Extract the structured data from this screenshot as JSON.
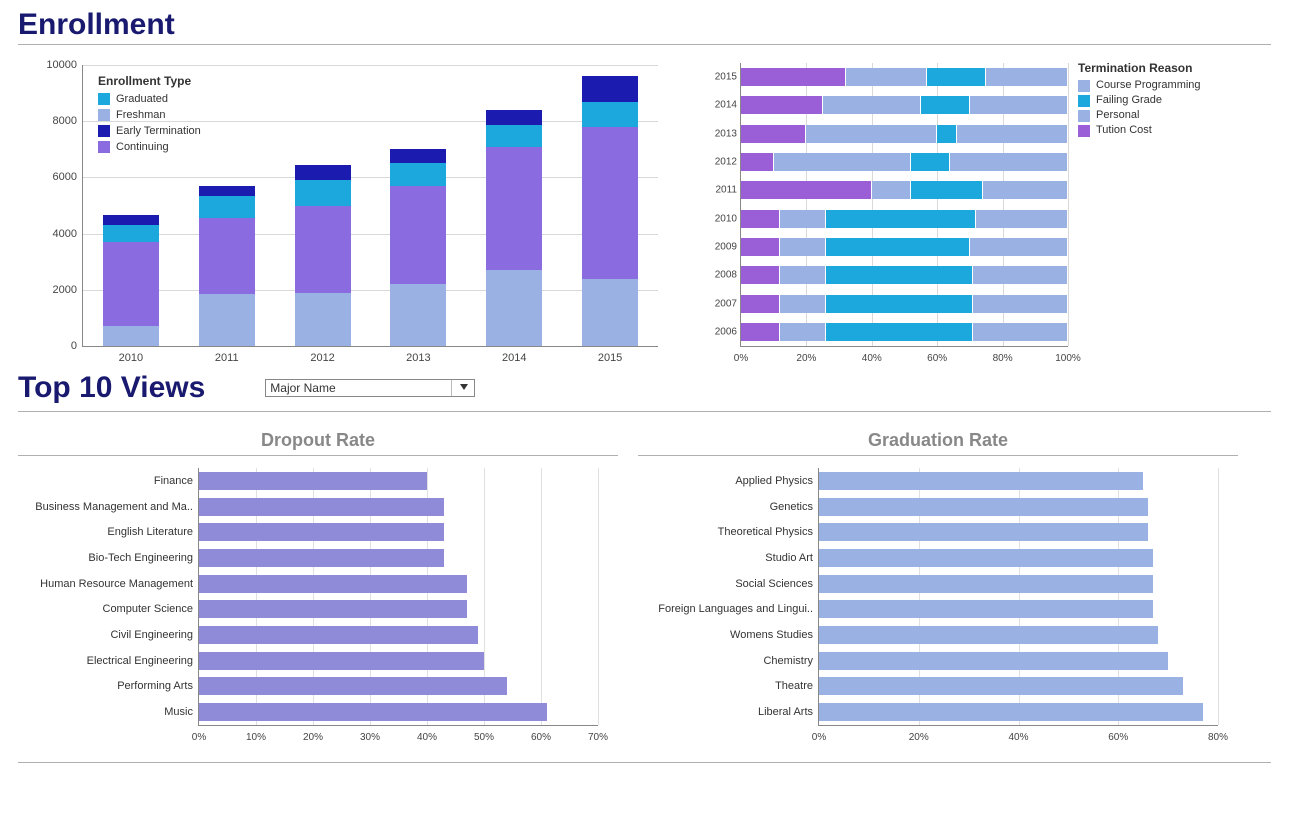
{
  "section1_title": "Enrollment",
  "section2_title": "Top 10 Views",
  "selector": {
    "label": "Major Name"
  },
  "enrollment_chart": {
    "type": "stacked-bar-vertical",
    "legend_title": "Enrollment Type",
    "series": [
      {
        "key": "graduated",
        "label": "Graduated",
        "color": "#1ca8dd"
      },
      {
        "key": "freshman",
        "label": "Freshman",
        "color": "#9ab2e3"
      },
      {
        "key": "early_termination",
        "label": "Early Termination",
        "color": "#1b1bb0"
      },
      {
        "key": "continuing",
        "label": "Continuing",
        "color": "#8b6ce0"
      }
    ],
    "y_max": 10000,
    "y_ticks": [
      0,
      2000,
      4000,
      6000,
      8000,
      10000
    ],
    "x_categories": [
      "2010",
      "2011",
      "2012",
      "2013",
      "2014",
      "2015"
    ],
    "stack_order": [
      "freshman",
      "continuing",
      "graduated",
      "early_termination"
    ],
    "values": {
      "2010": {
        "freshman": 700,
        "continuing": 3000,
        "graduated": 600,
        "early_termination": 350
      },
      "2011": {
        "freshman": 1850,
        "continuing": 2700,
        "graduated": 800,
        "early_termination": 350
      },
      "2012": {
        "freshman": 1900,
        "continuing": 3100,
        "graduated": 900,
        "early_termination": 550
      },
      "2013": {
        "freshman": 2200,
        "continuing": 3500,
        "graduated": 800,
        "early_termination": 500
      },
      "2014": {
        "freshman": 2700,
        "continuing": 4400,
        "graduated": 750,
        "early_termination": 550
      },
      "2015": {
        "freshman": 2400,
        "continuing": 5400,
        "graduated": 900,
        "early_termination": 900
      }
    }
  },
  "termination_chart": {
    "type": "stacked-bar-horizontal-100pct",
    "legend_title": "Termination Reason",
    "series": [
      {
        "key": "course_programming",
        "label": "Course Programming",
        "color": "#9ab2e3"
      },
      {
        "key": "failing_grade",
        "label": "Failing Grade",
        "color": "#1ca8dd"
      },
      {
        "key": "personal",
        "label": "Personal",
        "color": "#9ab2e3"
      },
      {
        "key": "tuition_cost",
        "label": "Tution Cost",
        "color": "#9a5fd6"
      }
    ],
    "stack_order": [
      "tuition_cost",
      "personal_a",
      "failing_grade",
      "personal_b"
    ],
    "y_categories_top_to_bottom": [
      "2015",
      "2014",
      "2013",
      "2012",
      "2011",
      "2010",
      "2009",
      "2008",
      "2007",
      "2006"
    ],
    "x_ticks": [
      0,
      20,
      40,
      60,
      80,
      100
    ],
    "values": {
      "2015": {
        "tuition_cost": 32,
        "personal_a": 25,
        "failing_grade": 18,
        "personal_b": 25
      },
      "2014": {
        "tuition_cost": 25,
        "personal_a": 30,
        "failing_grade": 15,
        "personal_b": 30
      },
      "2013": {
        "tuition_cost": 20,
        "personal_a": 40,
        "failing_grade": 6,
        "personal_b": 34
      },
      "2012": {
        "tuition_cost": 10,
        "personal_a": 42,
        "failing_grade": 12,
        "personal_b": 36
      },
      "2011": {
        "tuition_cost": 40,
        "personal_a": 12,
        "failing_grade": 22,
        "personal_b": 26
      },
      "2010": {
        "tuition_cost": 12,
        "personal_a": 14,
        "failing_grade": 46,
        "personal_b": 28
      },
      "2009": {
        "tuition_cost": 12,
        "personal_a": 14,
        "failing_grade": 44,
        "personal_b": 30
      },
      "2008": {
        "tuition_cost": 12,
        "personal_a": 14,
        "failing_grade": 45,
        "personal_b": 29
      },
      "2007": {
        "tuition_cost": 12,
        "personal_a": 14,
        "failing_grade": 45,
        "personal_b": 29
      },
      "2006": {
        "tuition_cost": 12,
        "personal_a": 14,
        "failing_grade": 45,
        "personal_b": 29
      }
    },
    "segment_colors": {
      "tuition_cost": "#9a5fd6",
      "personal_a": "#9ab2e3",
      "failing_grade": "#1ca8dd",
      "personal_b": "#9ab2e3"
    }
  },
  "dropout_chart": {
    "type": "horizontal-bar",
    "title": "Dropout Rate",
    "bar_color": "#8f8bd8",
    "x_max": 70,
    "x_ticks": [
      0,
      10,
      20,
      30,
      40,
      50,
      60,
      70
    ],
    "rows": [
      {
        "label": "Finance",
        "value": 40
      },
      {
        "label": "Business Management and Ma..",
        "value": 43
      },
      {
        "label": "English Literature",
        "value": 43
      },
      {
        "label": "Bio-Tech Engineering",
        "value": 43
      },
      {
        "label": "Human Resource Management",
        "value": 47
      },
      {
        "label": "Computer Science",
        "value": 47
      },
      {
        "label": "Civil Engineering",
        "value": 49
      },
      {
        "label": "Electrical Engineering",
        "value": 50
      },
      {
        "label": "Performing Arts",
        "value": 54
      },
      {
        "label": "Music",
        "value": 61
      }
    ]
  },
  "graduation_chart": {
    "type": "horizontal-bar",
    "title": "Graduation Rate",
    "bar_color": "#9ab2e3",
    "x_max": 80,
    "x_ticks": [
      0,
      20,
      40,
      60,
      80
    ],
    "rows": [
      {
        "label": "Applied Physics",
        "value": 65
      },
      {
        "label": "Genetics",
        "value": 66
      },
      {
        "label": "Theoretical Physics",
        "value": 66
      },
      {
        "label": "Studio Art",
        "value": 67
      },
      {
        "label": "Social Sciences",
        "value": 67
      },
      {
        "label": "Foreign Languages and Lingui..",
        "value": 67
      },
      {
        "label": "Womens Studies",
        "value": 68
      },
      {
        "label": "Chemistry",
        "value": 70
      },
      {
        "label": "Theatre",
        "value": 73
      },
      {
        "label": "Liberal Arts",
        "value": 77
      }
    ]
  }
}
